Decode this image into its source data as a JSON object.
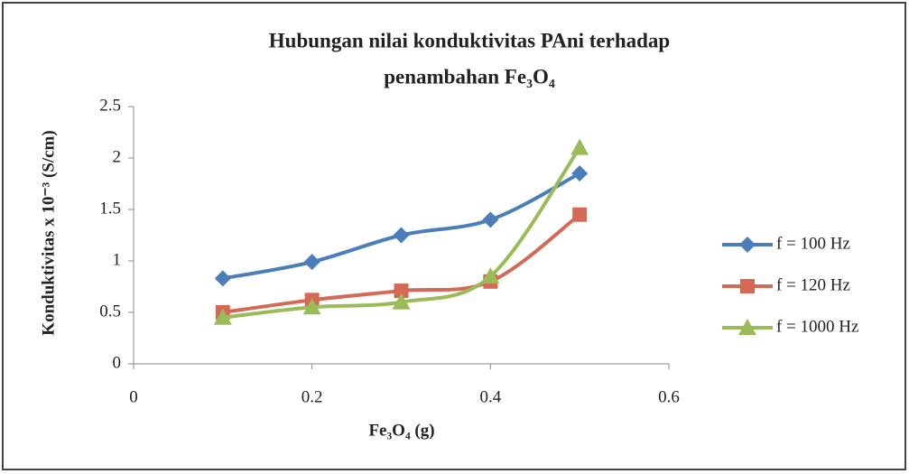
{
  "chart_data": {
    "type": "line",
    "title": [
      "Hubungan nilai konduktivitas PAni terhadap",
      "penambahan Fe₃O₄"
    ],
    "xlabel": "Fe₃O₄ (g)",
    "ylabel": "Konduktivitas x 10⁻³ (S/cm)",
    "x": [
      0.1,
      0.2,
      0.3,
      0.4,
      0.5
    ],
    "series": [
      {
        "name": "f = 100 Hz",
        "color": "#4a7ebb",
        "marker": "diamond",
        "values": [
          0.83,
          0.99,
          1.25,
          1.4,
          1.85
        ]
      },
      {
        "name": "f = 120 Hz",
        "color": "#d46a55",
        "marker": "square",
        "values": [
          0.5,
          0.62,
          0.71,
          0.8,
          1.45
        ]
      },
      {
        "name": "f = 1000 Hz",
        "color": "#9bbb59",
        "marker": "triangle",
        "values": [
          0.45,
          0.55,
          0.6,
          0.85,
          2.1
        ]
      }
    ],
    "xlim": [
      0,
      0.6
    ],
    "xticks": [
      0,
      0.2,
      0.4,
      0.6
    ],
    "ylim": [
      0,
      2.5
    ],
    "yticks": [
      0,
      0.5,
      1,
      1.5,
      2,
      2.5
    ],
    "smooth": true,
    "grid": false,
    "legend": "right"
  }
}
